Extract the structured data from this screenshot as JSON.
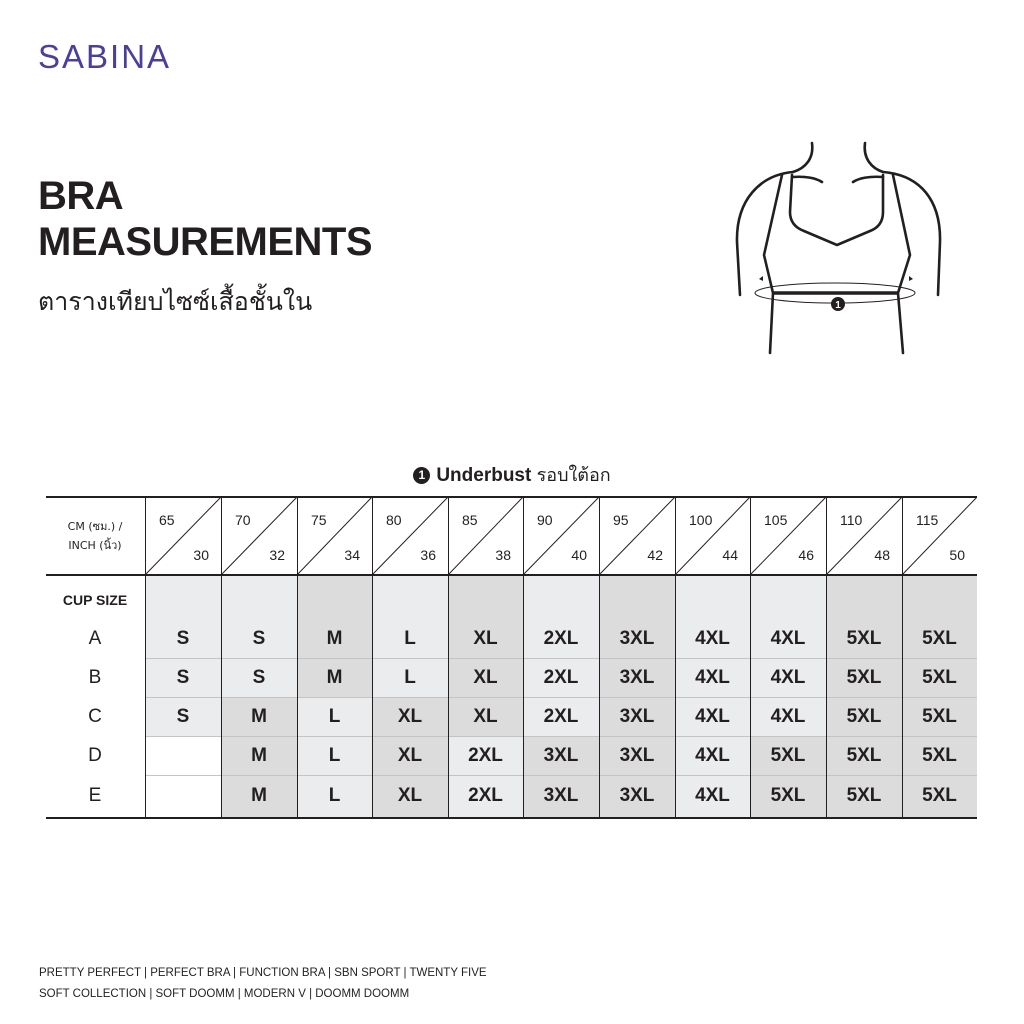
{
  "brand": {
    "logo": "SABINA",
    "color": "#4b3f9c"
  },
  "header": {
    "title_line1": "BRA",
    "title_line2": "MEASUREMENTS",
    "subtitle_thai": "ตารางเทียบไซซ์เสื้อชั้นใน"
  },
  "figure": {
    "marker": "1"
  },
  "measurement": {
    "marker": "1",
    "name": "Underbust",
    "name_thai": "รอบใต้อก"
  },
  "table": {
    "unit_label_line1": "CM (ซม.) /",
    "unit_label_line2": "INCH (นิ้ว)",
    "cup_size_label": "CUP SIZE",
    "columns": [
      {
        "cm": "65",
        "inch": "30"
      },
      {
        "cm": "70",
        "inch": "32"
      },
      {
        "cm": "75",
        "inch": "34"
      },
      {
        "cm": "80",
        "inch": "36"
      },
      {
        "cm": "85",
        "inch": "38"
      },
      {
        "cm": "90",
        "inch": "40"
      },
      {
        "cm": "95",
        "inch": "42"
      },
      {
        "cm": "100",
        "inch": "44"
      },
      {
        "cm": "105",
        "inch": "46"
      },
      {
        "cm": "110",
        "inch": "48"
      },
      {
        "cm": "115",
        "inch": "50"
      }
    ],
    "rows": [
      {
        "cup": "A",
        "sizes": [
          "S",
          "S",
          "M",
          "L",
          "XL",
          "2XL",
          "3XL",
          "4XL",
          "4XL",
          "5XL",
          "5XL"
        ]
      },
      {
        "cup": "B",
        "sizes": [
          "S",
          "S",
          "M",
          "L",
          "XL",
          "2XL",
          "3XL",
          "4XL",
          "4XL",
          "5XL",
          "5XL"
        ]
      },
      {
        "cup": "C",
        "sizes": [
          "S",
          "M",
          "L",
          "XL",
          "XL",
          "2XL",
          "3XL",
          "4XL",
          "4XL",
          "5XL",
          "5XL"
        ]
      },
      {
        "cup": "D",
        "sizes": [
          "",
          "M",
          "L",
          "XL",
          "2XL",
          "3XL",
          "3XL",
          "4XL",
          "5XL",
          "5XL",
          "5XL"
        ]
      },
      {
        "cup": "E",
        "sizes": [
          "",
          "M",
          "L",
          "XL",
          "2XL",
          "3XL",
          "3XL",
          "4XL",
          "5XL",
          "5XL",
          "5XL"
        ]
      }
    ],
    "shade_colors": {
      "light": "#ebecee",
      "dark": "#dcdcdc"
    },
    "dark_sizes": [
      "M",
      "XL",
      "3XL",
      "5XL"
    ]
  },
  "footer": {
    "line1": "PRETTY PERFECT |  PERFECT BRA |  FUNCTION BRA |  SBN SPORT |  TWENTY FIVE",
    "line2": "SOFT COLLECTION |  SOFT DOOMM |  MODERN V |  DOOMM DOOMM"
  }
}
